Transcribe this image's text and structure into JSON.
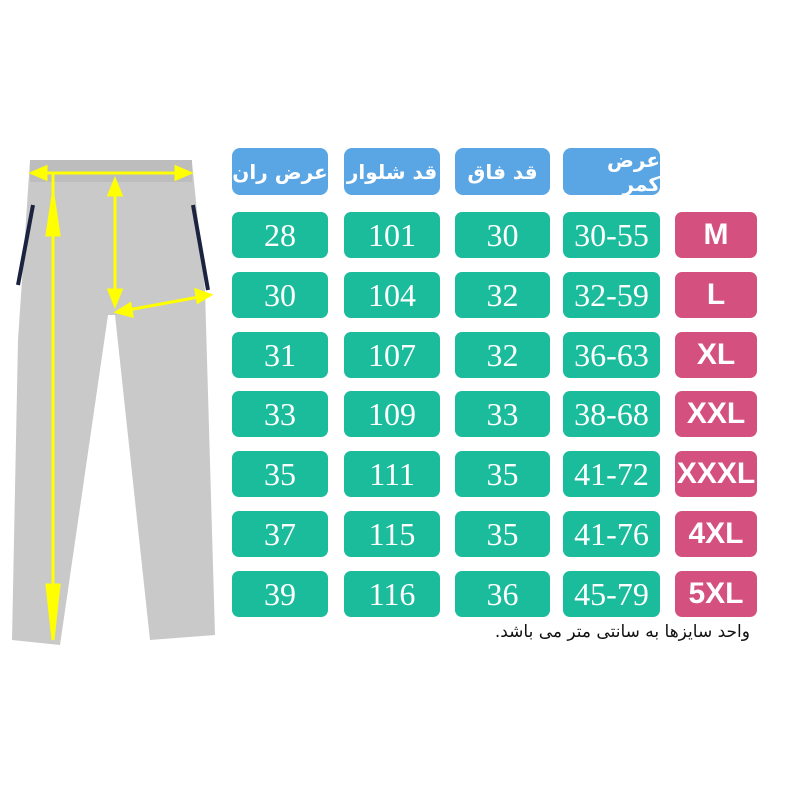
{
  "headers": {
    "waist": "عرض کمر",
    "crotch": "قد فاق",
    "length": "قد شلوار",
    "thigh": "عرض ران"
  },
  "rows": [
    {
      "size": "M",
      "waist": "30-55",
      "crotch": "30",
      "length": "101",
      "thigh": "28"
    },
    {
      "size": "L",
      "waist": "32-59",
      "crotch": "32",
      "length": "104",
      "thigh": "30"
    },
    {
      "size": "XL",
      "waist": "36-63",
      "crotch": "32",
      "length": "107",
      "thigh": "31"
    },
    {
      "size": "XXL",
      "waist": "38-68",
      "crotch": "33",
      "length": "109",
      "thigh": "33"
    },
    {
      "size": "XXXL",
      "waist": "41-72",
      "crotch": "35",
      "length": "111",
      "thigh": "35"
    },
    {
      "size": "4XL",
      "waist": "41-76",
      "crotch": "35",
      "length": "115",
      "thigh": "37"
    },
    {
      "size": "5XL",
      "waist": "45-79",
      "crotch": "36",
      "length": "116",
      "thigh": "39"
    }
  ],
  "note": "واحد سایزها به سانتی متر می باشد.",
  "colors": {
    "header": "#5aa5e3",
    "value": "#1bbc9b",
    "size": "#d4507e",
    "arrow": "#ffff00",
    "pants": "#c8c8c8"
  }
}
